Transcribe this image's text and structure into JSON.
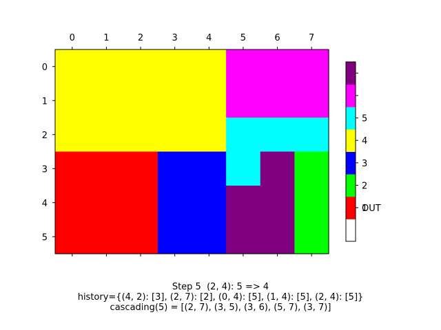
{
  "chart_data": {
    "type": "heatmap",
    "x_ticks": [
      "0",
      "1",
      "2",
      "3",
      "4",
      "5",
      "6",
      "7"
    ],
    "y_ticks": [
      "0",
      "1",
      "2",
      "3",
      "4",
      "5"
    ],
    "grid": [
      [
        4,
        4,
        4,
        4,
        4,
        6,
        6,
        6
      ],
      [
        4,
        4,
        4,
        4,
        4,
        6,
        6,
        6
      ],
      [
        4,
        4,
        4,
        4,
        4,
        5,
        5,
        5
      ],
      [
        1,
        1,
        1,
        3,
        3,
        5,
        7,
        2
      ],
      [
        1,
        1,
        1,
        3,
        3,
        7,
        7,
        2
      ],
      [
        1,
        1,
        1,
        3,
        3,
        7,
        7,
        2
      ]
    ],
    "colorbar": {
      "colors": [
        "#ffffff",
        "#ff0000",
        "#00ff00",
        "#0000ff",
        "#ffff00",
        "#00ffff",
        "#ff00ff",
        "#800080"
      ],
      "tick_labels": [
        "OUT",
        "1",
        "2",
        "3",
        "4",
        "5"
      ]
    },
    "grid_lines": false
  },
  "caption": {
    "line1": "Step 5  (2, 4): 5 => 4",
    "line2": "history={(4, 2): [3], (2, 7): [2], (0, 4): [5], (1, 4): [5], (2, 4): [5]}",
    "line3": "cascading(5) = [(2, 7), (3, 5), (3, 6), (5, 7), (3, 7)]"
  }
}
